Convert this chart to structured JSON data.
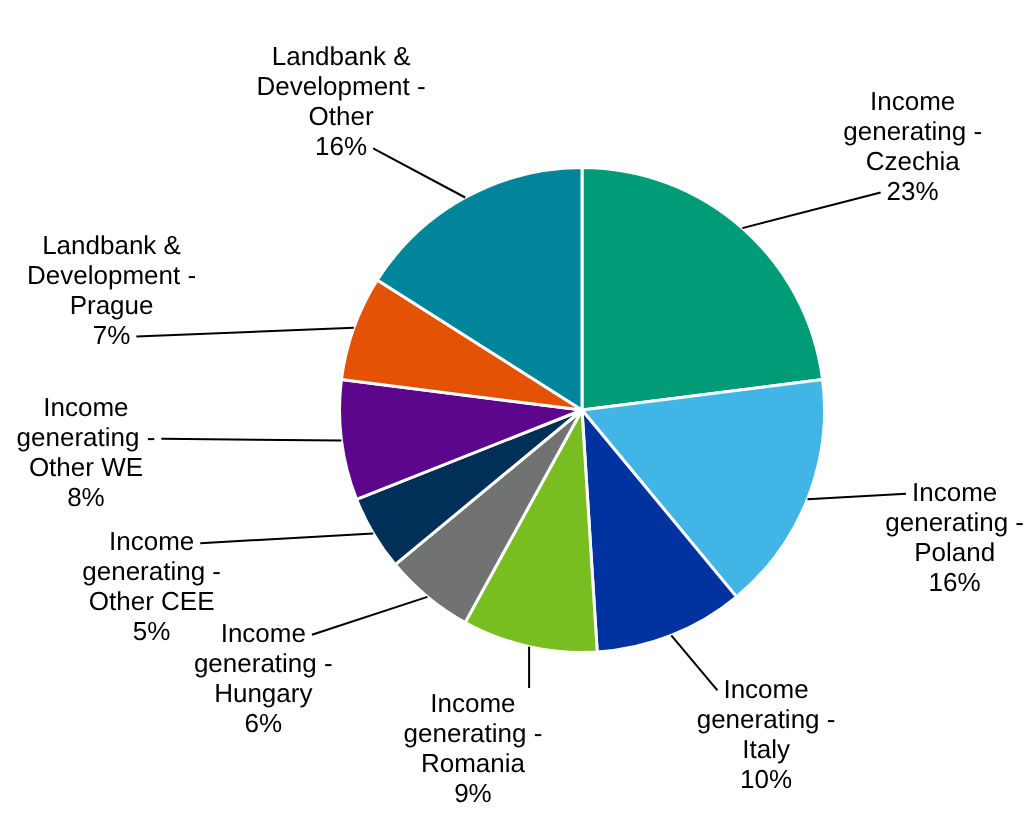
{
  "chart_data": {
    "type": "pie",
    "categories": [
      "Income generating - Czechia",
      "Income generating - Poland",
      "Income generating - Italy",
      "Income generating - Romania",
      "Income generating - Hungary",
      "Income generating - Other CEE",
      "Income generating - Other WE",
      "Landbank & Development - Prague",
      "Landbank & Development - Other"
    ],
    "values": [
      23,
      16,
      10,
      9,
      6,
      5,
      8,
      7,
      16
    ],
    "value_labels": [
      "23%",
      "16%",
      "10%",
      "9%",
      "6%",
      "5%",
      "8%",
      "7%",
      "16%"
    ],
    "colors": [
      "#009b77",
      "#41b6e6",
      "#0033a0",
      "#78be20",
      "#707372",
      "#003057",
      "#5c068c",
      "#e35205",
      "#00859b"
    ],
    "legend": false
  }
}
